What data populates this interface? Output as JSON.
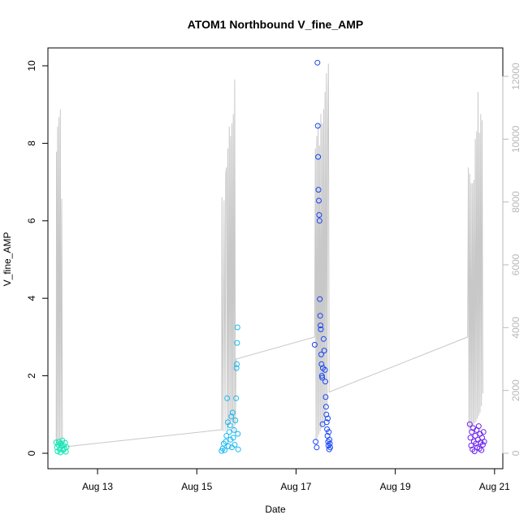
{
  "chart_data": {
    "type": "scatter",
    "title": "ATOM1 Northbound V_fine_AMP",
    "xlabel": "Date",
    "ylabel": "V_fine_AMP",
    "x_ticks": [
      "Aug 13",
      "Aug 15",
      "Aug 17",
      "Aug 19",
      "Aug 21"
    ],
    "y_ticks": [
      "0",
      "2",
      "4",
      "6",
      "8",
      "10"
    ],
    "y_right_ticks": [
      "0",
      "2000",
      "4000",
      "6000",
      "8000",
      "10000",
      "12000"
    ],
    "ylim": [
      0,
      10.4
    ],
    "y_right_lim": [
      0,
      12600
    ],
    "xlim": [
      "2024-08-12 00:00",
      "2024-08-21 04:00"
    ],
    "colors": {
      "line": "#c8c8c8",
      "right_axis": "#b8b8b8",
      "cluster_1": "#11e6b4",
      "cluster_2": "#1ab8f0",
      "cluster_3": "#1544f5",
      "cluster_4": "#6a20f0"
    },
    "series": [
      {
        "marker": "circle-open",
        "axis": "left",
        "points": [
          [
            "2024-08-12 04:00",
            0.28
          ],
          [
            "2024-08-12 04:20",
            0.15
          ],
          [
            "2024-08-12 04:40",
            0.05
          ],
          [
            "2024-08-12 05:00",
            0.22
          ],
          [
            "2024-08-12 05:20",
            0.3
          ],
          [
            "2024-08-12 05:40",
            0.1
          ],
          [
            "2024-08-12 06:00",
            0.02
          ],
          [
            "2024-08-12 06:20",
            0.25
          ],
          [
            "2024-08-12 06:40",
            0.18
          ],
          [
            "2024-08-12 07:00",
            0.33
          ],
          [
            "2024-08-12 07:20",
            0.08
          ],
          [
            "2024-08-12 07:40",
            0.2
          ],
          [
            "2024-08-12 08:00",
            0.12
          ],
          [
            "2024-08-12 08:20",
            0.27
          ],
          [
            "2024-08-12 08:40",
            0.04
          ],
          [
            "2024-08-12 09:00",
            0.16
          ],
          [
            "2024-08-15 12:00",
            0.06
          ],
          [
            "2024-08-15 12:30",
            0.12
          ],
          [
            "2024-08-15 13:00",
            0.25
          ],
          [
            "2024-08-15 13:30",
            0.08
          ],
          [
            "2024-08-15 14:00",
            0.3
          ],
          [
            "2024-08-15 14:20",
            0.45
          ],
          [
            "2024-08-15 14:40",
            1.42
          ],
          [
            "2024-08-15 15:00",
            0.8
          ],
          [
            "2024-08-15 15:20",
            0.18
          ],
          [
            "2024-08-15 15:40",
            0.55
          ],
          [
            "2024-08-15 16:00",
            0.72
          ],
          [
            "2024-08-15 16:20",
            0.35
          ],
          [
            "2024-08-15 16:40",
            0.95
          ],
          [
            "2024-08-15 17:00",
            0.15
          ],
          [
            "2024-08-15 17:20",
            1.05
          ],
          [
            "2024-08-15 17:40",
            0.4
          ],
          [
            "2024-08-15 18:00",
            0.6
          ],
          [
            "2024-08-15 18:20",
            0.22
          ],
          [
            "2024-08-15 18:40",
            0.85
          ],
          [
            "2024-08-15 19:00",
            1.42
          ],
          [
            "2024-08-15 19:10",
            2.2
          ],
          [
            "2024-08-15 19:20",
            2.3
          ],
          [
            "2024-08-15 19:30",
            2.85
          ],
          [
            "2024-08-15 19:40",
            3.25
          ],
          [
            "2024-08-15 19:50",
            0.5
          ],
          [
            "2024-08-15 20:00",
            0.1
          ],
          [
            "2024-08-17 09:00",
            2.8
          ],
          [
            "2024-08-17 09:30",
            0.3
          ],
          [
            "2024-08-17 10:00",
            0.15
          ],
          [
            "2024-08-17 10:20",
            10.08
          ],
          [
            "2024-08-17 10:30",
            8.45
          ],
          [
            "2024-08-17 10:40",
            7.65
          ],
          [
            "2024-08-17 10:50",
            6.8
          ],
          [
            "2024-08-17 11:00",
            6.52
          ],
          [
            "2024-08-17 11:10",
            6.15
          ],
          [
            "2024-08-17 11:20",
            6.0
          ],
          [
            "2024-08-17 11:30",
            3.98
          ],
          [
            "2024-08-17 11:40",
            3.55
          ],
          [
            "2024-08-17 11:50",
            3.3
          ],
          [
            "2024-08-17 12:00",
            3.2
          ],
          [
            "2024-08-17 12:10",
            2.55
          ],
          [
            "2024-08-17 12:20",
            2.3
          ],
          [
            "2024-08-17 12:30",
            2.0
          ],
          [
            "2024-08-17 12:40",
            1.95
          ],
          [
            "2024-08-17 12:50",
            0.75
          ],
          [
            "2024-08-17 13:00",
            2.2
          ],
          [
            "2024-08-17 13:20",
            2.95
          ],
          [
            "2024-08-17 13:40",
            2.65
          ],
          [
            "2024-08-17 14:00",
            2.15
          ],
          [
            "2024-08-17 14:10",
            1.85
          ],
          [
            "2024-08-17 14:20",
            1.45
          ],
          [
            "2024-08-17 14:30",
            1.2
          ],
          [
            "2024-08-17 14:40",
            1.0
          ],
          [
            "2024-08-17 14:50",
            0.8
          ],
          [
            "2024-08-17 15:00",
            0.62
          ],
          [
            "2024-08-17 15:10",
            0.45
          ],
          [
            "2024-08-17 15:20",
            0.9
          ],
          [
            "2024-08-17 15:30",
            0.3
          ],
          [
            "2024-08-17 15:40",
            0.2
          ],
          [
            "2024-08-17 15:50",
            0.55
          ],
          [
            "2024-08-17 16:00",
            0.1
          ],
          [
            "2024-08-17 16:10",
            0.35
          ],
          [
            "2024-08-17 16:20",
            0.25
          ],
          [
            "2024-08-17 16:30",
            0.15
          ],
          [
            "2024-08-20 12:00",
            0.75
          ],
          [
            "2024-08-20 12:20",
            0.4
          ],
          [
            "2024-08-20 12:40",
            0.2
          ],
          [
            "2024-08-20 13:00",
            0.55
          ],
          [
            "2024-08-20 13:20",
            0.1
          ],
          [
            "2024-08-20 13:40",
            0.65
          ],
          [
            "2024-08-20 14:00",
            0.3
          ],
          [
            "2024-08-20 14:20",
            0.05
          ],
          [
            "2024-08-20 14:40",
            0.45
          ],
          [
            "2024-08-20 15:00",
            0.25
          ],
          [
            "2024-08-20 15:20",
            0.6
          ],
          [
            "2024-08-20 15:40",
            0.15
          ],
          [
            "2024-08-20 16:00",
            0.35
          ],
          [
            "2024-08-20 16:20",
            0.7
          ],
          [
            "2024-08-20 16:40",
            0.12
          ],
          [
            "2024-08-20 17:00",
            0.5
          ],
          [
            "2024-08-20 17:20",
            0.28
          ],
          [
            "2024-08-20 17:40",
            0.08
          ],
          [
            "2024-08-20 18:00",
            0.4
          ],
          [
            "2024-08-20 18:20",
            0.22
          ],
          [
            "2024-08-20 18:40",
            0.55
          ],
          [
            "2024-08-20 19:00",
            0.3
          ]
        ]
      },
      {
        "marker": "line",
        "axis": "right",
        "points": [
          [
            "2024-08-12 04:00",
            200
          ],
          [
            "2024-08-12 04:10",
            9600
          ],
          [
            "2024-08-12 04:20",
            300
          ],
          [
            "2024-08-12 04:40",
            10400
          ],
          [
            "2024-08-12 05:00",
            250
          ],
          [
            "2024-08-12 05:20",
            10700
          ],
          [
            "2024-08-12 05:40",
            350
          ],
          [
            "2024-08-12 06:00",
            10950
          ],
          [
            "2024-08-12 06:20",
            300
          ],
          [
            "2024-08-12 06:40",
            8100
          ],
          [
            "2024-08-12 07:00",
            250
          ],
          [
            "2024-08-12 07:20",
            200
          ],
          [
            "2024-08-15 12:00",
            750
          ],
          [
            "2024-08-15 12:10",
            8150
          ],
          [
            "2024-08-15 12:40",
            700
          ],
          [
            "2024-08-15 13:10",
            8050
          ],
          [
            "2024-08-15 13:40",
            700
          ],
          [
            "2024-08-15 14:00",
            8900
          ],
          [
            "2024-08-15 14:20",
            9100
          ],
          [
            "2024-08-15 14:40",
            750
          ],
          [
            "2024-08-15 15:00",
            9700
          ],
          [
            "2024-08-15 15:20",
            800
          ],
          [
            "2024-08-15 15:40",
            10400
          ],
          [
            "2024-08-15 16:00",
            900
          ],
          [
            "2024-08-15 16:20",
            10100
          ],
          [
            "2024-08-15 16:40",
            1000
          ],
          [
            "2024-08-15 17:00",
            10500
          ],
          [
            "2024-08-15 17:20",
            800
          ],
          [
            "2024-08-15 17:40",
            10800
          ],
          [
            "2024-08-15 18:00",
            700
          ],
          [
            "2024-08-15 18:20",
            11900
          ],
          [
            "2024-08-15 18:40",
            900
          ],
          [
            "2024-08-15 19:00",
            3000
          ],
          [
            "2024-08-17 09:00",
            3700
          ],
          [
            "2024-08-17 09:20",
            9700
          ],
          [
            "2024-08-17 09:40",
            400
          ],
          [
            "2024-08-17 10:00",
            10100
          ],
          [
            "2024-08-17 10:20",
            500
          ],
          [
            "2024-08-17 10:40",
            10500
          ],
          [
            "2024-08-17 11:00",
            600
          ],
          [
            "2024-08-17 11:20",
            9800
          ],
          [
            "2024-08-17 11:40",
            700
          ],
          [
            "2024-08-17 12:00",
            10800
          ],
          [
            "2024-08-17 12:20",
            800
          ],
          [
            "2024-08-17 12:40",
            10500
          ],
          [
            "2024-08-17 13:00",
            900
          ],
          [
            "2024-08-17 13:20",
            10950
          ],
          [
            "2024-08-17 13:40",
            1000
          ],
          [
            "2024-08-17 14:00",
            11500
          ],
          [
            "2024-08-17 14:20",
            1200
          ],
          [
            "2024-08-17 14:40",
            12100
          ],
          [
            "2024-08-17 15:00",
            1500
          ],
          [
            "2024-08-17 15:20",
            10200
          ],
          [
            "2024-08-17 15:40",
            12400
          ],
          [
            "2024-08-17 16:00",
            1950
          ],
          [
            "2024-08-20 11:00",
            3700
          ],
          [
            "2024-08-20 11:20",
            9100
          ],
          [
            "2024-08-20 11:40",
            700
          ],
          [
            "2024-08-20 12:00",
            8900
          ],
          [
            "2024-08-20 12:20",
            800
          ],
          [
            "2024-08-20 12:40",
            8600
          ],
          [
            "2024-08-20 13:00",
            900
          ],
          [
            "2024-08-20 13:20",
            8600
          ],
          [
            "2024-08-20 13:40",
            900
          ],
          [
            "2024-08-20 14:00",
            8700
          ],
          [
            "2024-08-20 14:20",
            950
          ],
          [
            "2024-08-20 14:40",
            10000
          ],
          [
            "2024-08-20 15:00",
            1000
          ],
          [
            "2024-08-20 15:20",
            10250
          ],
          [
            "2024-08-20 15:40",
            1100
          ],
          [
            "2024-08-20 16:00",
            11500
          ],
          [
            "2024-08-20 16:20",
            1200
          ],
          [
            "2024-08-20 16:40",
            10200
          ],
          [
            "2024-08-20 17:00",
            1300
          ],
          [
            "2024-08-20 17:20",
            10800
          ],
          [
            "2024-08-20 17:40",
            1500
          ],
          [
            "2024-08-20 18:00",
            10600
          ],
          [
            "2024-08-20 18:20",
            1900
          ]
        ]
      }
    ]
  }
}
